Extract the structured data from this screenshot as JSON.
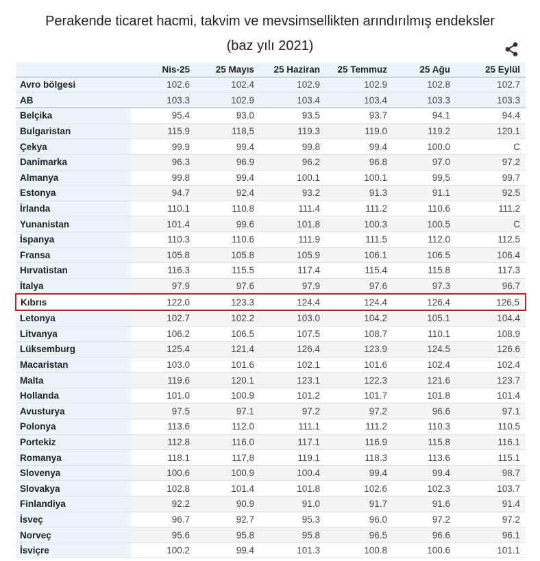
{
  "title_line1": "Perakende ticaret hacmi, takvim ve mevsimsellikten arındırılmış endeksler",
  "title_line2": "(baz yılı 2021)",
  "share_icon": "share-icon",
  "highlight_color": "#d01c1c",
  "highlighted_row": "Kıbrıs",
  "columns": [
    "",
    "Nis-25",
    "25 Mayıs",
    "25 Haziran",
    "25 Temmuz",
    "25 Ağu",
    "25 Eylül"
  ],
  "rows": [
    {
      "label": "Avro bölgesi",
      "values": [
        "102.6",
        "102.4",
        "102.9",
        "102.9",
        "102.8",
        "102.7"
      ]
    },
    {
      "label": "AB",
      "values": [
        "103.3",
        "102.9",
        "103.4",
        "103.4",
        "103.3",
        "103.3"
      ]
    },
    {
      "label": "Belçika",
      "values": [
        "95.4",
        "93.0",
        "93.5",
        "93.7",
        "94.1",
        "94.4"
      ]
    },
    {
      "label": "Bulgaristan",
      "values": [
        "115.9",
        "118,5",
        "119.3",
        "119.0",
        "119.2",
        "120.1"
      ]
    },
    {
      "label": "Çekya",
      "values": [
        "99.9",
        "99.4",
        "99.8",
        "99.4",
        "100.0",
        "C"
      ]
    },
    {
      "label": "Danimarka",
      "values": [
        "96.3",
        "96.9",
        "96.2",
        "96.8",
        "97.0",
        "97.2"
      ]
    },
    {
      "label": "Almanya",
      "values": [
        "99.8",
        "99.4",
        "100.1",
        "100.1",
        "99,5",
        "99.7"
      ]
    },
    {
      "label": "Estonya",
      "values": [
        "94.7",
        "92.4",
        "93.2",
        "91.3",
        "91.1",
        "92.5"
      ]
    },
    {
      "label": "İrlanda",
      "values": [
        "110.1",
        "110.8",
        "111.4",
        "111.2",
        "110.6",
        "111.2"
      ]
    },
    {
      "label": "Yunanistan",
      "values": [
        "101.4",
        "99.6",
        "101.8",
        "100.3",
        "100.5",
        "C"
      ]
    },
    {
      "label": "İspanya",
      "values": [
        "110.3",
        "110.6",
        "111.9",
        "111.5",
        "112.0",
        "112.5"
      ]
    },
    {
      "label": "Fransa",
      "values": [
        "105.8",
        "105.8",
        "105.9",
        "106.1",
        "106.5",
        "106.4"
      ]
    },
    {
      "label": "Hırvatistan",
      "values": [
        "116.3",
        "115.5",
        "117.4",
        "115.4",
        "115.8",
        "117.3"
      ]
    },
    {
      "label": "İtalya",
      "values": [
        "97.9",
        "97.6",
        "97.9",
        "97.6",
        "97.3",
        "96.7"
      ]
    },
    {
      "label": "Kıbrıs",
      "values": [
        "122.0",
        "123.3",
        "124.4",
        "124.4",
        "126.4",
        "126,5"
      ]
    },
    {
      "label": "Letonya",
      "values": [
        "102.7",
        "102.2",
        "103.0",
        "104.2",
        "105.1",
        "104.4"
      ]
    },
    {
      "label": "Litvanya",
      "values": [
        "106.2",
        "106.5",
        "107.5",
        "108.7",
        "110.1",
        "108.9"
      ]
    },
    {
      "label": "Lüksemburg",
      "values": [
        "125.4",
        "121.4",
        "126.4",
        "123.9",
        "124.5",
        "126.6"
      ]
    },
    {
      "label": "Macaristan",
      "values": [
        "103.0",
        "101.6",
        "102.1",
        "101.6",
        "102.4",
        "102.4"
      ]
    },
    {
      "label": "Malta",
      "values": [
        "119.6",
        "120.1",
        "123.1",
        "122.3",
        "121.6",
        "123.7"
      ]
    },
    {
      "label": "Hollanda",
      "values": [
        "101.0",
        "100.9",
        "101.2",
        "101.7",
        "101.8",
        "101.4"
      ]
    },
    {
      "label": "Avusturya",
      "values": [
        "97.5",
        "97.1",
        "97.2",
        "97.2",
        "96.6",
        "97.1"
      ]
    },
    {
      "label": "Polonya",
      "values": [
        "113.6",
        "112.0",
        "111.1",
        "111.2",
        "110.3",
        "110.5"
      ]
    },
    {
      "label": "Portekiz",
      "values": [
        "112.8",
        "116.0",
        "117.1",
        "116.9",
        "115.8",
        "116.1"
      ]
    },
    {
      "label": "Romanya",
      "values": [
        "118.1",
        "117,8",
        "119.1",
        "118.3",
        "113.6",
        "115.1"
      ]
    },
    {
      "label": "Slovenya",
      "values": [
        "100.6",
        "100.9",
        "100.4",
        "99.4",
        "99.4",
        "98.7"
      ]
    },
    {
      "label": "Slovakya",
      "values": [
        "102.8",
        "101.4",
        "101.8",
        "102.6",
        "102.3",
        "103.7"
      ]
    },
    {
      "label": "Finlandiya",
      "values": [
        "92.2",
        "90.9",
        "91.0",
        "91.7",
        "91.6",
        "91.4"
      ]
    },
    {
      "label": "İsveç",
      "values": [
        "96.7",
        "92.7",
        "95.3",
        "96.0",
        "97.2",
        "97.2"
      ]
    },
    {
      "label": "Norveç",
      "values": [
        "95.6",
        "95.8",
        "95.8",
        "96.5",
        "96.6",
        "96.1"
      ]
    },
    {
      "label": "İsviçre",
      "values": [
        "100.2",
        "99.4",
        "101.3",
        "100.8",
        "100.6",
        "101.1"
      ]
    }
  ]
}
